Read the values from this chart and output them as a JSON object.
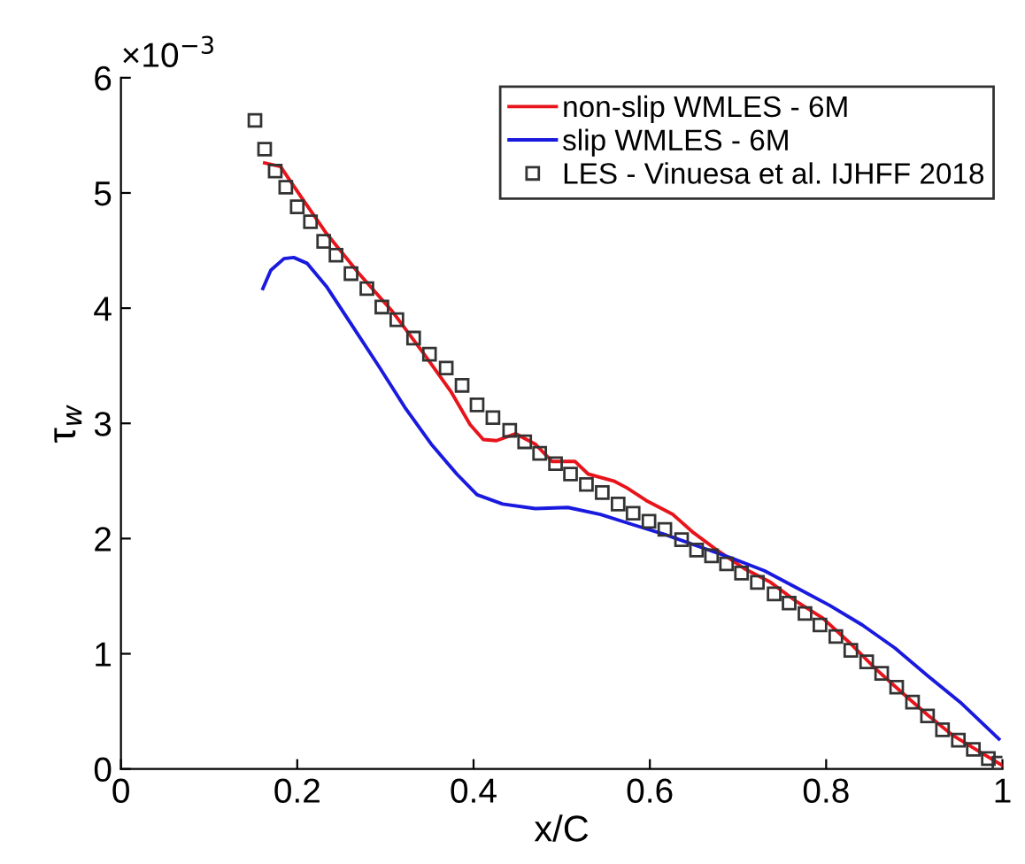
{
  "chart_data": {
    "type": "line",
    "xlabel": "x/C",
    "ylabel": "τ$_{w}$",
    "annotations": [
      "×10$^{−3}$"
    ],
    "xlim": [
      0,
      1
    ],
    "ylim": [
      0,
      6
    ],
    "xticks": [
      0,
      0.2,
      0.4,
      0.6,
      0.8,
      1
    ],
    "yticks": [
      0,
      1,
      2,
      3,
      4,
      5,
      6
    ],
    "grid": false,
    "legend": "top right",
    "series": [
      {
        "name": "non-slip WMLES - 6M",
        "color": "#e8141b",
        "line_style": "solid",
        "marker": "none",
        "x": [
          0.163,
          0.181,
          0.204,
          0.233,
          0.27,
          0.307,
          0.344,
          0.374,
          0.396,
          0.411,
          0.426,
          0.448,
          0.47,
          0.489,
          0.515,
          0.53,
          0.559,
          0.574,
          0.596,
          0.626,
          0.648,
          0.678,
          0.707,
          0.737,
          0.767,
          0.796,
          0.826,
          0.856,
          0.885,
          0.915,
          0.944,
          0.974,
          1.0
        ],
        "values": [
          5.26,
          5.23,
          4.97,
          4.65,
          4.3,
          3.98,
          3.6,
          3.28,
          2.99,
          2.86,
          2.85,
          2.91,
          2.82,
          2.67,
          2.67,
          2.56,
          2.5,
          2.44,
          2.33,
          2.21,
          2.06,
          1.89,
          1.74,
          1.62,
          1.45,
          1.31,
          1.1,
          0.87,
          0.67,
          0.47,
          0.29,
          0.15,
          0.03
        ]
      },
      {
        "name": "slip WMLES - 6M",
        "color": "#1a1adf",
        "line_style": "solid",
        "marker": "none",
        "x": [
          0.161,
          0.17,
          0.185,
          0.196,
          0.211,
          0.233,
          0.263,
          0.293,
          0.322,
          0.352,
          0.381,
          0.404,
          0.433,
          0.47,
          0.507,
          0.544,
          0.581,
          0.619,
          0.656,
          0.693,
          0.73,
          0.767,
          0.804,
          0.841,
          0.878,
          0.915,
          0.952,
          0.996
        ],
        "values": [
          4.17,
          4.33,
          4.43,
          4.44,
          4.39,
          4.19,
          3.84,
          3.49,
          3.14,
          2.82,
          2.56,
          2.38,
          2.3,
          2.26,
          2.27,
          2.21,
          2.12,
          2.03,
          1.93,
          1.83,
          1.72,
          1.57,
          1.42,
          1.25,
          1.05,
          0.81,
          0.58,
          0.26
        ]
      },
      {
        "name": "LES - Vinuesa et al. IJHFF 2018",
        "type": "scatter",
        "color": "#333333",
        "marker": "square",
        "x": [
          0.152,
          0.163,
          0.175,
          0.187,
          0.2,
          0.215,
          0.23,
          0.244,
          0.261,
          0.279,
          0.296,
          0.313,
          0.332,
          0.35,
          0.369,
          0.387,
          0.404,
          0.422,
          0.441,
          0.458,
          0.475,
          0.493,
          0.51,
          0.528,
          0.546,
          0.564,
          0.581,
          0.599,
          0.617,
          0.636,
          0.653,
          0.67,
          0.687,
          0.704,
          0.722,
          0.741,
          0.758,
          0.776,
          0.793,
          0.811,
          0.828,
          0.846,
          0.863,
          0.88,
          0.898,
          0.915,
          0.932,
          0.95,
          0.967,
          0.984,
          0.996
        ],
        "values": [
          5.63,
          5.38,
          5.19,
          5.05,
          4.88,
          4.75,
          4.58,
          4.46,
          4.3,
          4.17,
          4.01,
          3.9,
          3.74,
          3.6,
          3.48,
          3.33,
          3.16,
          3.05,
          2.94,
          2.84,
          2.74,
          2.65,
          2.56,
          2.47,
          2.4,
          2.3,
          2.22,
          2.15,
          2.08,
          1.99,
          1.9,
          1.85,
          1.78,
          1.7,
          1.62,
          1.52,
          1.44,
          1.35,
          1.25,
          1.15,
          1.03,
          0.93,
          0.83,
          0.71,
          0.58,
          0.46,
          0.34,
          0.25,
          0.17,
          0.09,
          0.05
        ]
      }
    ]
  }
}
